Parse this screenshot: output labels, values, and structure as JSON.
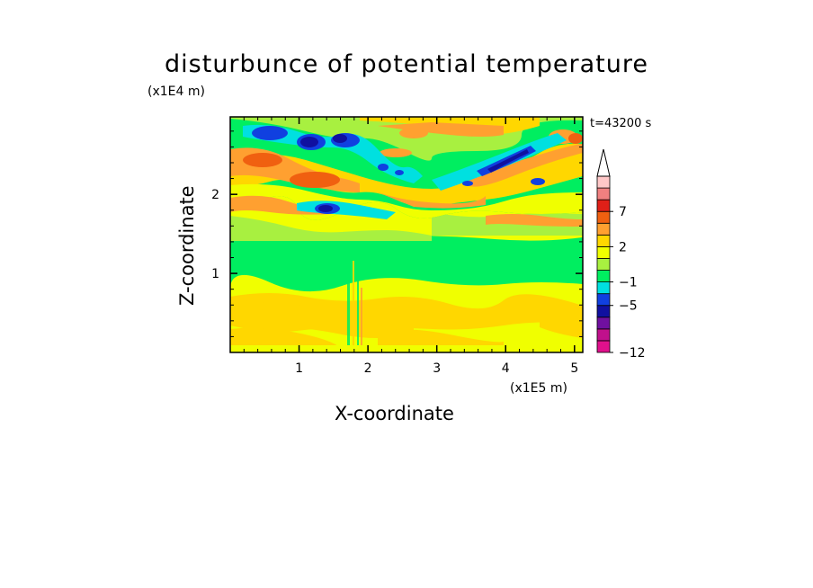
{
  "chart_data": {
    "type": "heatmap",
    "title": "disturbunce of potential temperature",
    "xlabel": "X-coordinate",
    "ylabel": "Z-coordinate",
    "x_unit": "(x1E5 m)",
    "y_unit": "(x1E4 m)",
    "time_label": "t=43200 s",
    "xlim": [
      0,
      5.12
    ],
    "ylim": [
      0,
      2.98
    ],
    "x_ticks": [
      1,
      2,
      3,
      4,
      5
    ],
    "y_ticks": [
      1,
      2
    ],
    "colorbar": {
      "levels": [
        -12,
        -11,
        -9,
        -7,
        -5,
        -3,
        -1,
        0,
        1,
        2,
        3,
        5,
        7,
        9,
        11
      ],
      "tick_labels": [
        "7",
        "2",
        "−1",
        "−5",
        "−12"
      ],
      "tick_values": [
        7,
        2,
        -1,
        -5,
        -12
      ],
      "colors": [
        "#e0108c",
        "#c0108c",
        "#7010a0",
        "#1010a0",
        "#1040e0",
        "#00e0e0",
        "#00ee60",
        "#a8f040",
        "#f0ff00",
        "#ffd700",
        "#ffa030",
        "#f06010",
        "#e02018",
        "#f08080",
        "#ffc8c8"
      ],
      "extend_top": true
    },
    "bands": [
      {
        "z_range": [
          0.0,
          0.9
        ],
        "value": 2,
        "description_color": "#f0ff00"
      },
      {
        "z_range": [
          0.1,
          0.7
        ],
        "value": 3,
        "description_color": "#ffd700"
      },
      {
        "z_range": [
          0.9,
          1.5
        ],
        "value": 0,
        "description_color": "#00ee60"
      },
      {
        "z_range": [
          1.5,
          2.98
        ],
        "value": "mixed",
        "description_color": "varied"
      }
    ]
  }
}
